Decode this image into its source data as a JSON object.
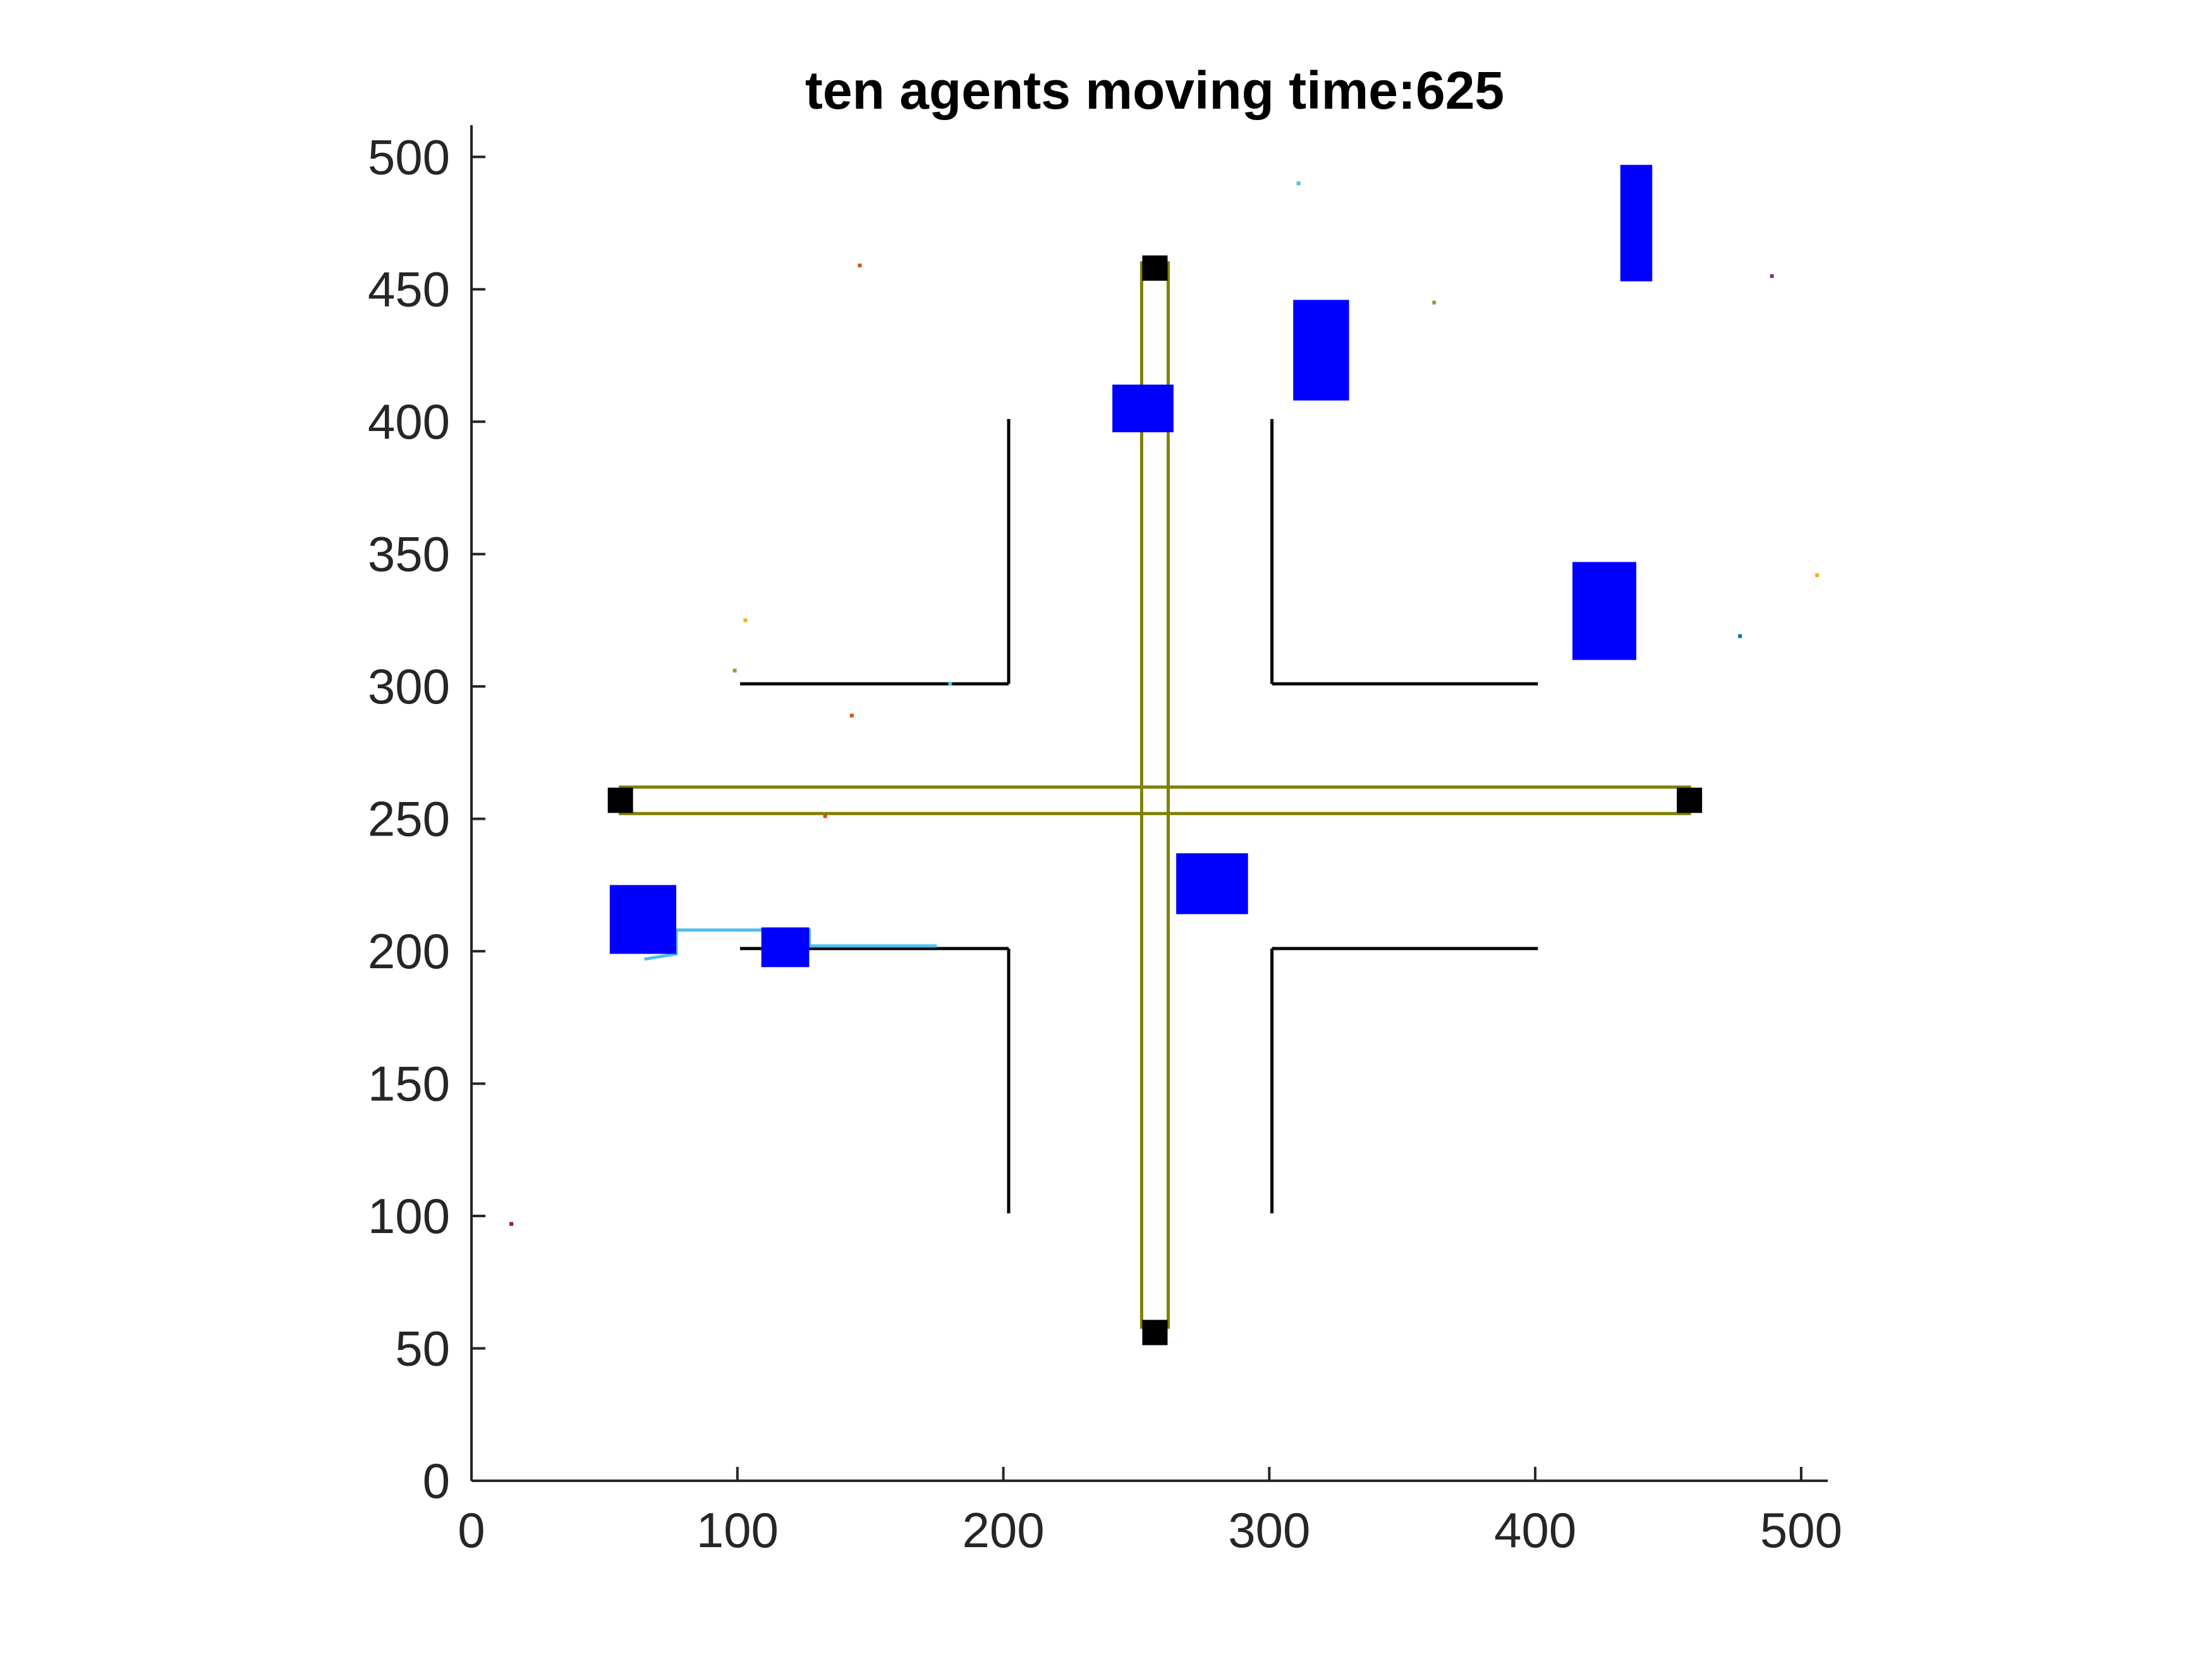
{
  "chart_data": {
    "type": "scatter",
    "title": "ten agents moving time:625",
    "xlabel": "",
    "ylabel": "",
    "xlim": [
      0,
      510
    ],
    "ylim": [
      0,
      512
    ],
    "xticks": [
      0,
      100,
      200,
      300,
      400,
      500
    ],
    "yticks": [
      0,
      50,
      100,
      150,
      200,
      250,
      300,
      350,
      400,
      450,
      500
    ],
    "xtick_labels": [
      "0",
      "100",
      "200",
      "300",
      "400",
      "500"
    ],
    "ytick_labels": [
      "0",
      "50",
      "100",
      "150",
      "200",
      "250",
      "300",
      "350",
      "400",
      "450",
      "500"
    ],
    "grid": false,
    "box": false,
    "walls": [
      {
        "name": "upper-left-vertical",
        "x": [
          202,
          202
        ],
        "y": [
          301,
          401
        ]
      },
      {
        "name": "upper-left-horizontal",
        "x": [
          101,
          202
        ],
        "y": [
          301,
          301
        ]
      },
      {
        "name": "upper-right-vertical",
        "x": [
          301,
          301
        ],
        "y": [
          301,
          401
        ]
      },
      {
        "name": "upper-right-horizontal",
        "x": [
          301,
          401
        ],
        "y": [
          301,
          301
        ]
      },
      {
        "name": "lower-left-vertical",
        "x": [
          202,
          202
        ],
        "y": [
          101,
          201
        ]
      },
      {
        "name": "lower-left-horizontal",
        "x": [
          101,
          202
        ],
        "y": [
          201,
          201
        ]
      },
      {
        "name": "lower-right-vertical",
        "x": [
          301,
          301
        ],
        "y": [
          101,
          201
        ]
      },
      {
        "name": "lower-right-horizontal",
        "x": [
          301,
          401
        ],
        "y": [
          201,
          201
        ]
      }
    ],
    "corridors": [
      {
        "name": "vertical-corridor",
        "x": [
          252,
          262
        ],
        "y": [
          58,
          460
        ]
      },
      {
        "name": "horizontal-corridor",
        "x": [
          56,
          458
        ],
        "y": [
          252,
          262
        ]
      }
    ],
    "endpoints": [
      {
        "x": 257,
        "y": 458
      },
      {
        "x": 257,
        "y": 56
      },
      {
        "x": 56,
        "y": 257
      },
      {
        "x": 458,
        "y": 257
      }
    ],
    "vehicles": [
      {
        "x": [
          432,
          444
        ],
        "y": [
          453,
          497
        ]
      },
      {
        "x": [
          309,
          330
        ],
        "y": [
          408,
          446
        ]
      },
      {
        "x": [
          241,
          264
        ],
        "y": [
          396,
          414
        ]
      },
      {
        "x": [
          414,
          438
        ],
        "y": [
          310,
          347
        ]
      },
      {
        "x": [
          265,
          292
        ],
        "y": [
          214,
          237
        ]
      },
      {
        "x": [
          52,
          77
        ],
        "y": [
          199,
          225
        ]
      },
      {
        "x": [
          109,
          127
        ],
        "y": [
          194,
          209
        ]
      }
    ],
    "trails": [
      {
        "x": [
          65,
          77,
          77,
          127,
          127,
          175
        ],
        "y": [
          197,
          199,
          208,
          208,
          202,
          202
        ]
      }
    ],
    "dots": [
      {
        "x": 146,
        "y": 459,
        "color": "#d95319"
      },
      {
        "x": 311,
        "y": 490,
        "color": "#4dbeee"
      },
      {
        "x": 362,
        "y": 445,
        "color": "#77ac30"
      },
      {
        "x": 489,
        "y": 455,
        "color": "#7e2f8e"
      },
      {
        "x": 506,
        "y": 342,
        "color": "#edb120"
      },
      {
        "x": 477,
        "y": 319,
        "color": "#0072bd"
      },
      {
        "x": 103,
        "y": 325,
        "color": "#edb120"
      },
      {
        "x": 99,
        "y": 306,
        "color": "#77ac30"
      },
      {
        "x": 143,
        "y": 289,
        "color": "#d95319"
      },
      {
        "x": 180,
        "y": 301,
        "color": "#4dbeee"
      },
      {
        "x": 133,
        "y": 251,
        "color": "#d95319"
      },
      {
        "x": 15,
        "y": 97,
        "color": "#a2142f"
      }
    ]
  }
}
